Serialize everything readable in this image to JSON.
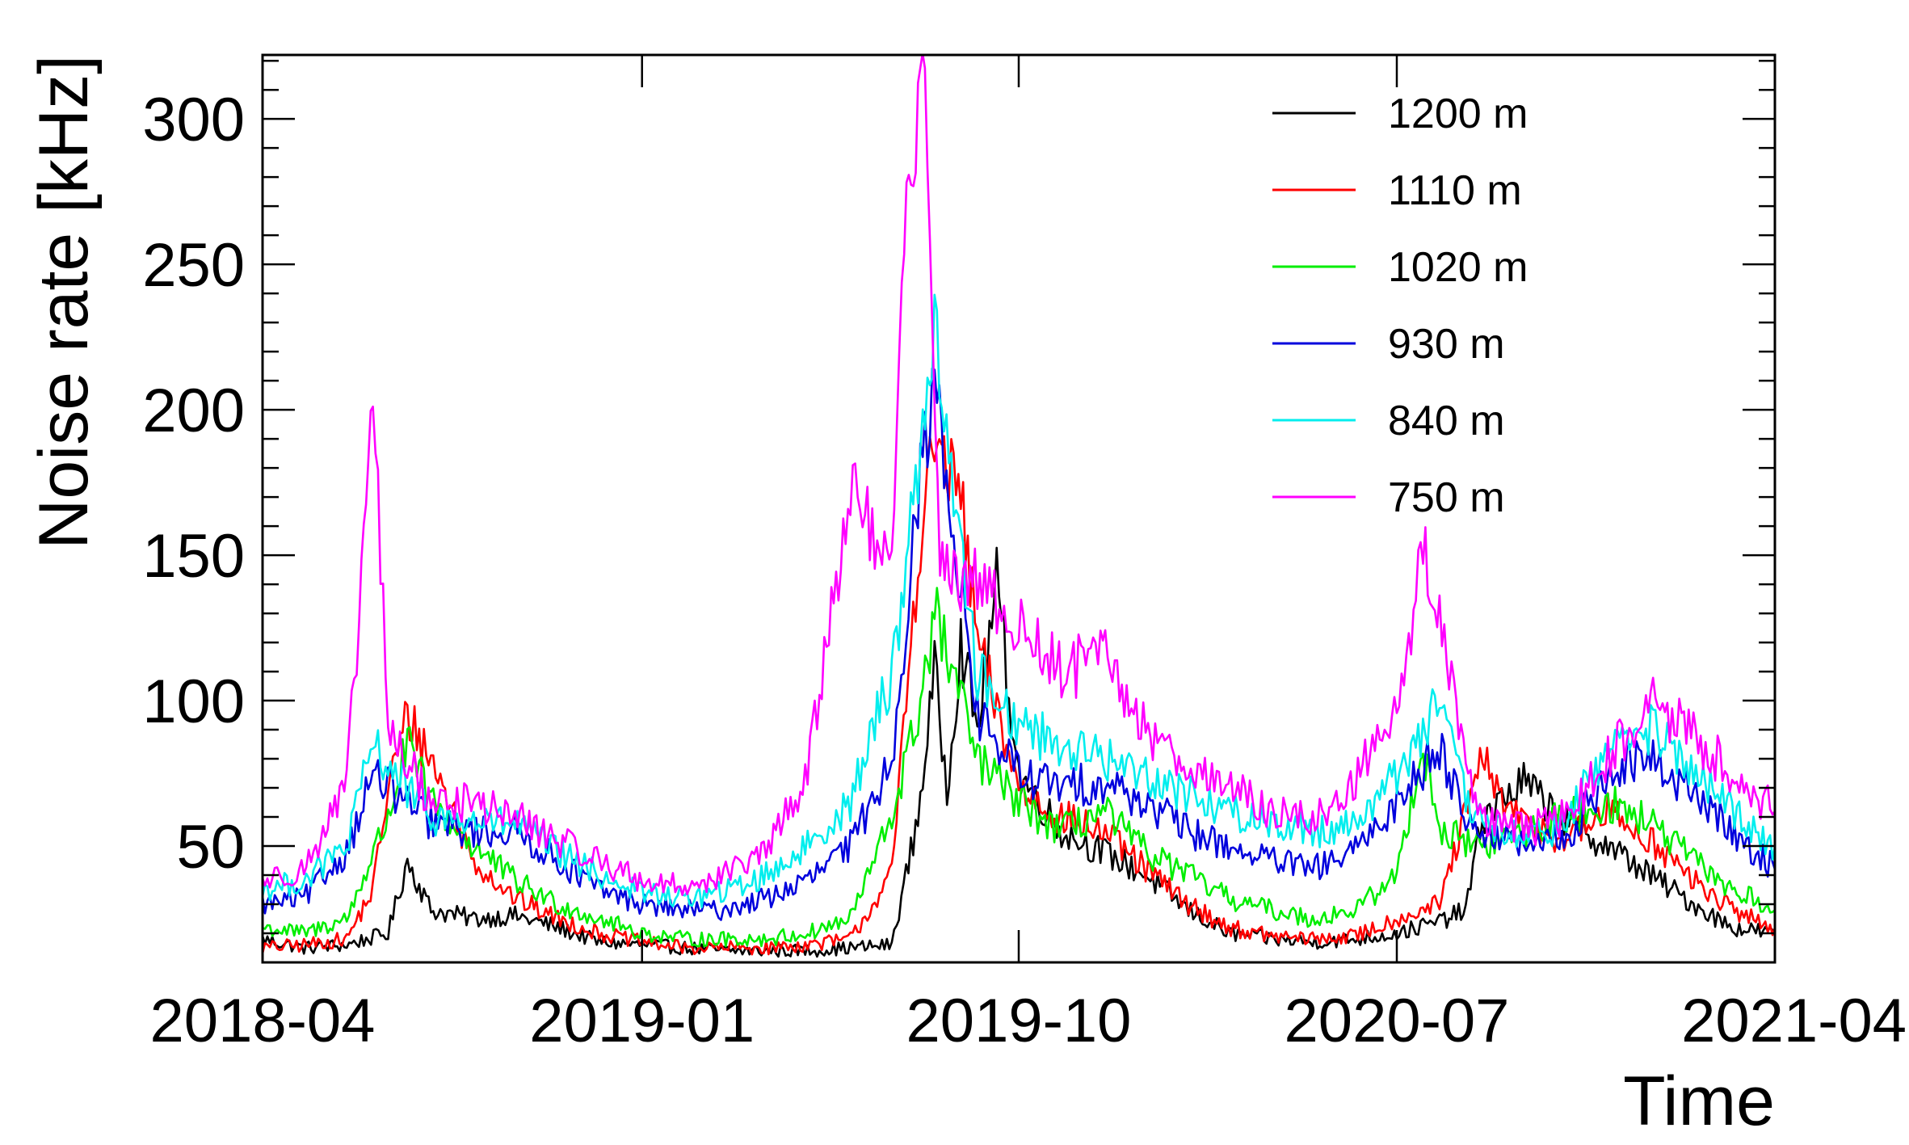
{
  "chart_data": {
    "type": "line",
    "title": "",
    "xlabel": "Time",
    "ylabel": "Noise rate [kHz]",
    "xlim": [
      "2018-04-01",
      "2021-04-01"
    ],
    "ylim": [
      10,
      322
    ],
    "x_ticks": [
      "2018-04",
      "2019-01",
      "2019-10",
      "2020-07",
      "2021-04"
    ],
    "y_ticks": [
      50,
      100,
      150,
      200,
      250,
      300
    ],
    "legend_position": "top-right",
    "grid": false,
    "series": [
      {
        "name": "1200 m",
        "color": "#000000",
        "points": [
          [
            "2018-04-01",
            18
          ],
          [
            "2018-05-01",
            15
          ],
          [
            "2018-06-01",
            16
          ],
          [
            "2018-07-01",
            20
          ],
          [
            "2018-07-15",
            45
          ],
          [
            "2018-08-01",
            28
          ],
          [
            "2018-09-01",
            25
          ],
          [
            "2018-10-01",
            26
          ],
          [
            "2018-11-01",
            22
          ],
          [
            "2018-12-01",
            17
          ],
          [
            "2019-01-01",
            16
          ],
          [
            "2019-02-01",
            15
          ],
          [
            "2019-03-01",
            14
          ],
          [
            "2019-04-01",
            14
          ],
          [
            "2019-05-01",
            14
          ],
          [
            "2019-06-01",
            15
          ],
          [
            "2019-07-01",
            16
          ],
          [
            "2019-07-20",
            60
          ],
          [
            "2019-08-01",
            110
          ],
          [
            "2019-08-10",
            70
          ],
          [
            "2019-08-20",
            120
          ],
          [
            "2019-09-01",
            90
          ],
          [
            "2019-09-15",
            140
          ],
          [
            "2019-10-01",
            75
          ],
          [
            "2019-11-01",
            55
          ],
          [
            "2019-12-01",
            48
          ],
          [
            "2020-01-01",
            40
          ],
          [
            "2020-02-01",
            28
          ],
          [
            "2020-03-01",
            20
          ],
          [
            "2020-04-01",
            18
          ],
          [
            "2020-05-01",
            17
          ],
          [
            "2020-06-01",
            18
          ],
          [
            "2020-07-01",
            20
          ],
          [
            "2020-08-01",
            24
          ],
          [
            "2020-08-20",
            28
          ],
          [
            "2020-09-01",
            60
          ],
          [
            "2020-10-01",
            72
          ],
          [
            "2020-11-01",
            58
          ],
          [
            "2020-12-01",
            50
          ],
          [
            "2021-01-01",
            40
          ],
          [
            "2021-02-01",
            30
          ],
          [
            "2021-03-01",
            22
          ],
          [
            "2021-04-01",
            20
          ]
        ]
      },
      {
        "name": "1110 m",
        "color": "#ff0000",
        "points": [
          [
            "2018-04-01",
            15
          ],
          [
            "2018-05-01",
            16
          ],
          [
            "2018-06-01",
            18
          ],
          [
            "2018-06-20",
            35
          ],
          [
            "2018-07-01",
            70
          ],
          [
            "2018-07-15",
            95
          ],
          [
            "2018-08-01",
            80
          ],
          [
            "2018-09-01",
            45
          ],
          [
            "2018-10-01",
            32
          ],
          [
            "2018-11-01",
            25
          ],
          [
            "2018-12-01",
            20
          ],
          [
            "2019-01-01",
            17
          ],
          [
            "2019-02-01",
            15
          ],
          [
            "2019-03-01",
            15
          ],
          [
            "2019-04-01",
            15
          ],
          [
            "2019-05-01",
            16
          ],
          [
            "2019-06-01",
            18
          ],
          [
            "2019-07-01",
            40
          ],
          [
            "2019-07-20",
            150
          ],
          [
            "2019-08-01",
            190
          ],
          [
            "2019-08-20",
            170
          ],
          [
            "2019-09-01",
            120
          ],
          [
            "2019-10-01",
            70
          ],
          [
            "2019-11-01",
            60
          ],
          [
            "2019-12-01",
            55
          ],
          [
            "2020-01-01",
            42
          ],
          [
            "2020-02-01",
            30
          ],
          [
            "2020-03-01",
            22
          ],
          [
            "2020-04-01",
            19
          ],
          [
            "2020-05-01",
            18
          ],
          [
            "2020-06-01",
            19
          ],
          [
            "2020-07-01",
            25
          ],
          [
            "2020-08-01",
            30
          ],
          [
            "2020-09-01",
            80
          ],
          [
            "2020-09-20",
            62
          ],
          [
            "2020-10-01",
            58
          ],
          [
            "2020-11-01",
            52
          ],
          [
            "2020-12-01",
            62
          ],
          [
            "2021-01-01",
            52
          ],
          [
            "2021-02-01",
            38
          ],
          [
            "2021-03-01",
            28
          ],
          [
            "2021-04-01",
            22
          ]
        ]
      },
      {
        "name": "1020 m",
        "color": "#00ee00",
        "points": [
          [
            "2018-04-01",
            22
          ],
          [
            "2018-05-01",
            20
          ],
          [
            "2018-06-01",
            25
          ],
          [
            "2018-07-01",
            60
          ],
          [
            "2018-07-15",
            85
          ],
          [
            "2018-08-01",
            65
          ],
          [
            "2018-09-01",
            50
          ],
          [
            "2018-10-01",
            38
          ],
          [
            "2018-11-01",
            30
          ],
          [
            "2018-12-01",
            25
          ],
          [
            "2019-01-01",
            20
          ],
          [
            "2019-02-01",
            18
          ],
          [
            "2019-03-01",
            18
          ],
          [
            "2019-04-01",
            18
          ],
          [
            "2019-05-01",
            20
          ],
          [
            "2019-06-01",
            25
          ],
          [
            "2019-07-01",
            60
          ],
          [
            "2019-07-20",
            95
          ],
          [
            "2019-08-01",
            130
          ],
          [
            "2019-08-20",
            100
          ],
          [
            "2019-09-01",
            80
          ],
          [
            "2019-10-01",
            65
          ],
          [
            "2019-11-01",
            55
          ],
          [
            "2019-12-01",
            62
          ],
          [
            "2020-01-01",
            48
          ],
          [
            "2020-02-01",
            40
          ],
          [
            "2020-03-01",
            32
          ],
          [
            "2020-04-01",
            28
          ],
          [
            "2020-05-01",
            25
          ],
          [
            "2020-06-01",
            28
          ],
          [
            "2020-07-01",
            40
          ],
          [
            "2020-07-20",
            85
          ],
          [
            "2020-08-01",
            55
          ],
          [
            "2020-09-01",
            50
          ],
          [
            "2020-10-01",
            55
          ],
          [
            "2020-11-01",
            60
          ],
          [
            "2020-12-01",
            65
          ],
          [
            "2021-01-01",
            58
          ],
          [
            "2021-02-01",
            45
          ],
          [
            "2021-03-01",
            35
          ],
          [
            "2021-04-01",
            28
          ]
        ]
      },
      {
        "name": "930 m",
        "color": "#0000dd",
        "points": [
          [
            "2018-04-01",
            30
          ],
          [
            "2018-05-01",
            32
          ],
          [
            "2018-06-01",
            48
          ],
          [
            "2018-06-20",
            75
          ],
          [
            "2018-07-01",
            70
          ],
          [
            "2018-08-01",
            58
          ],
          [
            "2018-09-01",
            55
          ],
          [
            "2018-10-01",
            55
          ],
          [
            "2018-11-01",
            45
          ],
          [
            "2018-12-01",
            35
          ],
          [
            "2019-01-01",
            30
          ],
          [
            "2019-02-01",
            28
          ],
          [
            "2019-03-01",
            28
          ],
          [
            "2019-04-01",
            32
          ],
          [
            "2019-05-01",
            38
          ],
          [
            "2019-06-01",
            50
          ],
          [
            "2019-07-01",
            80
          ],
          [
            "2019-07-20",
            170
          ],
          [
            "2019-08-01",
            210
          ],
          [
            "2019-08-20",
            140
          ],
          [
            "2019-09-01",
            95
          ],
          [
            "2019-10-01",
            75
          ],
          [
            "2019-11-01",
            70
          ],
          [
            "2019-12-01",
            72
          ],
          [
            "2020-01-01",
            65
          ],
          [
            "2020-02-01",
            55
          ],
          [
            "2020-03-01",
            50
          ],
          [
            "2020-04-01",
            45
          ],
          [
            "2020-05-01",
            42
          ],
          [
            "2020-06-01",
            48
          ],
          [
            "2020-07-01",
            65
          ],
          [
            "2020-08-01",
            85
          ],
          [
            "2020-08-20",
            60
          ],
          [
            "2020-09-01",
            55
          ],
          [
            "2020-10-01",
            50
          ],
          [
            "2020-11-01",
            52
          ],
          [
            "2020-12-01",
            75
          ],
          [
            "2021-01-01",
            80
          ],
          [
            "2021-02-01",
            68
          ],
          [
            "2021-03-01",
            55
          ],
          [
            "2021-04-01",
            42
          ]
        ]
      },
      {
        "name": "840 m",
        "color": "#00eeee",
        "points": [
          [
            "2018-04-01",
            35
          ],
          [
            "2018-05-01",
            38
          ],
          [
            "2018-06-01",
            50
          ],
          [
            "2018-06-20",
            85
          ],
          [
            "2018-07-01",
            78
          ],
          [
            "2018-08-01",
            60
          ],
          [
            "2018-09-01",
            58
          ],
          [
            "2018-10-01",
            58
          ],
          [
            "2018-11-01",
            48
          ],
          [
            "2018-12-01",
            40
          ],
          [
            "2019-01-01",
            34
          ],
          [
            "2019-02-01",
            32
          ],
          [
            "2019-03-01",
            34
          ],
          [
            "2019-04-01",
            40
          ],
          [
            "2019-05-01",
            50
          ],
          [
            "2019-06-01",
            65
          ],
          [
            "2019-07-01",
            110
          ],
          [
            "2019-07-20",
            180
          ],
          [
            "2019-08-01",
            230
          ],
          [
            "2019-08-20",
            150
          ],
          [
            "2019-09-01",
            110
          ],
          [
            "2019-10-01",
            92
          ],
          [
            "2019-11-01",
            85
          ],
          [
            "2019-12-01",
            80
          ],
          [
            "2020-01-01",
            75
          ],
          [
            "2020-02-01",
            68
          ],
          [
            "2020-03-01",
            62
          ],
          [
            "2020-04-01",
            58
          ],
          [
            "2020-05-01",
            55
          ],
          [
            "2020-06-01",
            58
          ],
          [
            "2020-07-01",
            75
          ],
          [
            "2020-08-01",
            100
          ],
          [
            "2020-08-20",
            65
          ],
          [
            "2020-09-01",
            58
          ],
          [
            "2020-10-01",
            52
          ],
          [
            "2020-11-01",
            58
          ],
          [
            "2020-12-01",
            85
          ],
          [
            "2021-01-01",
            90
          ],
          [
            "2021-02-01",
            75
          ],
          [
            "2021-03-01",
            62
          ],
          [
            "2021-04-01",
            50
          ]
        ]
      },
      {
        "name": "750 m",
        "color": "#ff00ff",
        "points": [
          [
            "2018-04-01",
            38
          ],
          [
            "2018-05-01",
            42
          ],
          [
            "2018-06-01",
            70
          ],
          [
            "2018-06-10",
            130
          ],
          [
            "2018-06-20",
            207
          ],
          [
            "2018-07-01",
            90
          ],
          [
            "2018-08-01",
            65
          ],
          [
            "2018-09-01",
            65
          ],
          [
            "2018-10-01",
            60
          ],
          [
            "2018-11-01",
            52
          ],
          [
            "2018-12-01",
            45
          ],
          [
            "2019-01-01",
            38
          ],
          [
            "2019-02-01",
            36
          ],
          [
            "2019-03-01",
            40
          ],
          [
            "2019-04-01",
            48
          ],
          [
            "2019-05-01",
            75
          ],
          [
            "2019-06-01",
            175
          ],
          [
            "2019-07-01",
            140
          ],
          [
            "2019-07-10",
            260
          ],
          [
            "2019-07-25",
            320
          ],
          [
            "2019-08-05",
            150
          ],
          [
            "2019-08-20",
            135
          ],
          [
            "2019-09-01",
            140
          ],
          [
            "2019-10-01",
            125
          ],
          [
            "2019-11-01",
            110
          ],
          [
            "2019-12-01",
            115
          ],
          [
            "2020-01-01",
            90
          ],
          [
            "2020-02-01",
            78
          ],
          [
            "2020-03-01",
            70
          ],
          [
            "2020-04-01",
            62
          ],
          [
            "2020-05-01",
            58
          ],
          [
            "2020-06-01",
            72
          ],
          [
            "2020-07-01",
            100
          ],
          [
            "2020-07-20",
            150
          ],
          [
            "2020-08-01",
            130
          ],
          [
            "2020-08-20",
            80
          ],
          [
            "2020-09-01",
            60
          ],
          [
            "2020-10-01",
            55
          ],
          [
            "2020-11-01",
            60
          ],
          [
            "2020-12-01",
            80
          ],
          [
            "2021-01-01",
            100
          ],
          [
            "2021-02-01",
            88
          ],
          [
            "2021-03-01",
            75
          ],
          [
            "2021-04-01",
            62
          ]
        ]
      }
    ]
  }
}
